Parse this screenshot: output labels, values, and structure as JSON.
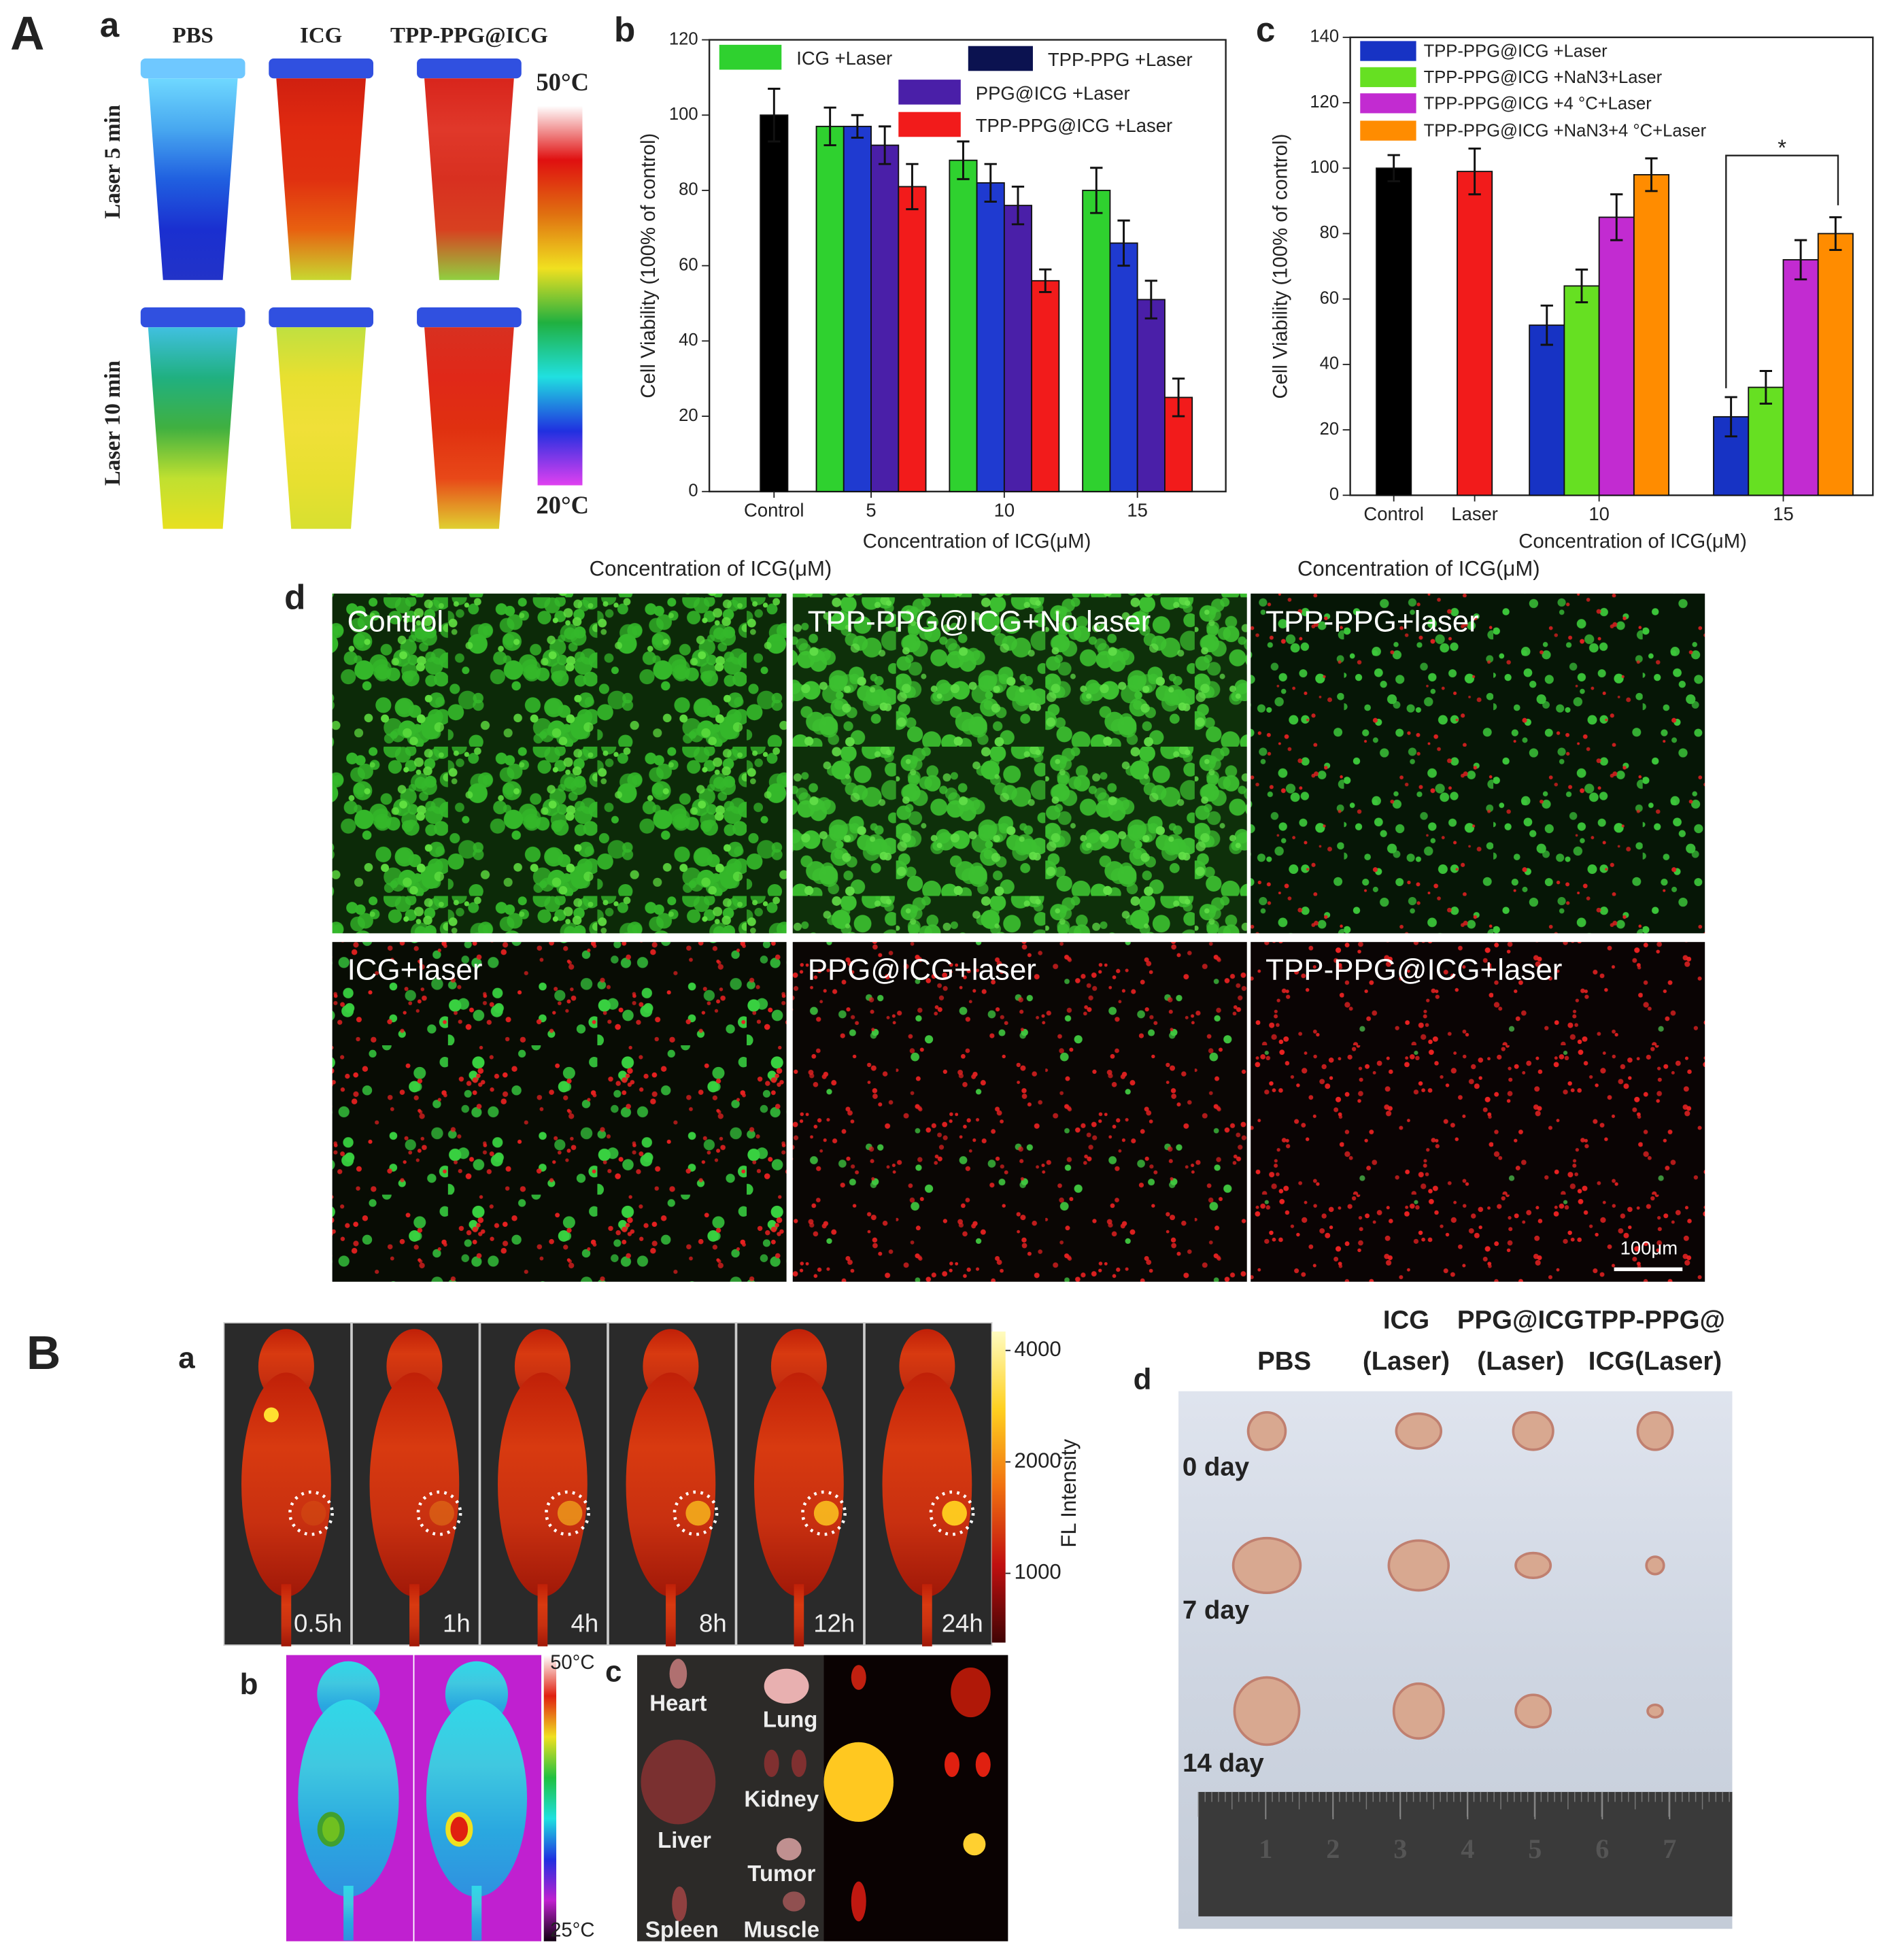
{
  "panel_A": {
    "label": "A",
    "a": {
      "label": "a",
      "columns": [
        "PBS",
        "ICG",
        "TPP-PPG@ICG"
      ],
      "rows": [
        "Laser 5 min",
        "Laser 10 min"
      ],
      "colorbar_max": "50°C",
      "colorbar_min": "20°C"
    },
    "extra_xlabels": [
      "Concentration of ICG(μM)",
      "Concentration of ICG(μM)"
    ],
    "d": {
      "label": "d",
      "tiles": [
        "Control",
        "TPP-PPG@ICG+No laser",
        "TPP-PPG+laser",
        "ICG+laser",
        "PPG@ICG+laser",
        "TPP-PPG@ICG+laser"
      ],
      "scale_bar": "100μm"
    }
  },
  "chart_data": [
    {
      "type": "bar",
      "panel_label": "b",
      "ylabel": "Cell Viability (100% of control)",
      "xlabel": "Concentration of ICG(μM)",
      "categories": [
        "Control",
        "5",
        "10",
        "15"
      ],
      "ylim": [
        0,
        120
      ],
      "yticks": [
        0,
        20,
        40,
        60,
        80,
        100,
        120
      ],
      "base_bars": {
        "values": [
          100,
          null,
          null,
          null
        ],
        "errors": [
          7,
          null,
          null,
          null
        ],
        "colors": [
          "#000000",
          null,
          null,
          null
        ]
      },
      "series": [
        {
          "name": "ICG +Laser",
          "color": "#2fd12f",
          "values": [
            null,
            97,
            88,
            80
          ],
          "errors": [
            null,
            5,
            5,
            6
          ]
        },
        {
          "name": "TPP-PPG +Laser",
          "color": "#1f3ad0",
          "values": [
            null,
            97,
            82,
            66
          ],
          "errors": [
            null,
            3,
            5,
            6
          ]
        },
        {
          "name": "PPG@ICG +Laser",
          "color": "#4a1fa8",
          "values": [
            null,
            92,
            76,
            51
          ],
          "errors": [
            null,
            5,
            5,
            5
          ]
        },
        {
          "name": "TPP-PPG@ICG +Laser",
          "color": "#f21b1b",
          "values": [
            null,
            81,
            56,
            25
          ],
          "errors": [
            null,
            6,
            3,
            5
          ]
        }
      ]
    },
    {
      "type": "bar",
      "panel_label": "c",
      "ylabel": "Cell Viability (100% of control)",
      "xlabel": "Concentration of ICG(μM)",
      "categories": [
        "Control",
        "Laser",
        "10",
        "15"
      ],
      "ylim": [
        0,
        140
      ],
      "yticks": [
        0,
        20,
        40,
        60,
        80,
        100,
        120,
        140
      ],
      "annotation": "*",
      "base_bars": {
        "values": [
          100,
          99,
          null,
          null
        ],
        "errors": [
          4,
          7,
          null,
          null
        ],
        "colors": [
          "#000000",
          "#f21b1b",
          null,
          null
        ]
      },
      "series": [
        {
          "name": "TPP-PPG@ICG +Laser",
          "color": "#1733c4",
          "values": [
            null,
            null,
            52,
            24
          ],
          "errors": [
            null,
            null,
            6,
            6
          ]
        },
        {
          "name": "TPP-PPG@ICG +NaN3+Laser",
          "color": "#66e022",
          "values": [
            null,
            null,
            64,
            33
          ],
          "errors": [
            null,
            null,
            5,
            5
          ]
        },
        {
          "name": "TPP-PPG@ICG +4 °C+Laser",
          "color": "#c22bd1",
          "values": [
            null,
            null,
            85,
            72
          ],
          "errors": [
            null,
            null,
            7,
            6
          ]
        },
        {
          "name": "TPP-PPG@ICG +NaN3+4 °C+Laser",
          "color": "#ff8c00",
          "values": [
            null,
            null,
            98,
            80
          ],
          "errors": [
            null,
            null,
            5,
            5
          ]
        }
      ]
    }
  ],
  "panel_B": {
    "label": "B",
    "a": {
      "label": "a",
      "times": [
        "0.5h",
        "1h",
        "4h",
        "8h",
        "12h",
        "24h"
      ],
      "colorbar_title": "FL Intensity",
      "clim": [
        650,
        4500
      ],
      "log_scale": true,
      "colorbar_ticks": [
        4000,
        2000,
        1000
      ]
    },
    "b": {
      "label": "b",
      "colorbar_max": "50°C",
      "colorbar_min": "25°C"
    },
    "c": {
      "label": "c",
      "organs": [
        "Heart",
        "Lung",
        "Liver",
        "Kidney",
        "Tumor",
        "Spleen",
        "Muscle"
      ]
    },
    "d": {
      "label": "d",
      "groups": [
        [
          "PBS"
        ],
        [
          "ICG",
          "(Laser)"
        ],
        [
          "PPG@ICG",
          "(Laser)"
        ],
        [
          "TPP-PPG@",
          "ICG(Laser)"
        ]
      ],
      "days": [
        "0 day",
        "7 day",
        "14 day"
      ],
      "ruler_range": [
        0,
        7.93
      ],
      "ruler_ticks": [
        1,
        2,
        3,
        4,
        5,
        6,
        7
      ]
    }
  }
}
